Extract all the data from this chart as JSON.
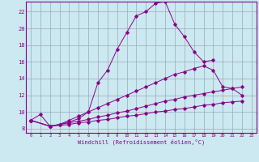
{
  "xlabel": "Windchill (Refroidissement éolien,°C)",
  "bg_color": "#cce8f0",
  "line_color": "#880088",
  "grid_color": "#99aabb",
  "xlim": [
    -0.5,
    23.5
  ],
  "ylim": [
    7.5,
    23.2
  ],
  "xticks": [
    0,
    1,
    2,
    3,
    4,
    5,
    6,
    7,
    8,
    9,
    10,
    11,
    12,
    13,
    14,
    15,
    16,
    17,
    18,
    19,
    20,
    21,
    22,
    23
  ],
  "yticks": [
    8,
    10,
    12,
    14,
    16,
    18,
    20,
    22
  ],
  "series_x": [
    [
      0,
      1,
      2,
      3,
      4,
      5,
      6,
      7,
      8,
      9,
      10,
      11,
      12,
      13,
      14,
      15,
      16,
      17,
      18,
      19
    ],
    [
      0,
      2,
      3,
      4,
      5,
      6,
      7,
      8,
      9,
      10,
      11,
      12,
      13,
      14,
      15,
      16,
      17,
      18,
      19,
      20,
      21,
      22
    ],
    [
      0,
      2,
      4,
      5,
      6,
      7,
      8,
      9,
      10,
      11,
      12,
      13,
      14,
      15,
      16,
      17,
      18,
      19,
      20,
      21,
      22
    ],
    [
      0,
      2,
      4,
      5,
      6,
      7,
      8,
      9,
      10,
      11,
      12,
      13,
      14,
      15,
      16,
      17,
      18,
      19,
      20,
      21,
      22
    ]
  ],
  "series_y": [
    [
      9.0,
      9.7,
      8.3,
      8.5,
      8.8,
      9.2,
      10.0,
      13.5,
      15.0,
      17.5,
      19.5,
      21.5,
      22.0,
      23.0,
      23.2,
      20.5,
      19.0,
      17.2,
      16.0,
      16.2
    ],
    [
      9.0,
      8.3,
      8.5,
      9.0,
      9.5,
      10.0,
      10.5,
      11.0,
      11.5,
      12.0,
      12.5,
      13.0,
      13.5,
      14.0,
      14.5,
      14.8,
      15.2,
      15.5,
      15.0,
      13.0,
      12.8,
      13.0
    ],
    [
      9.0,
      8.3,
      8.7,
      8.9,
      9.1,
      9.4,
      9.6,
      9.9,
      10.1,
      10.4,
      10.7,
      11.0,
      11.3,
      11.5,
      11.8,
      12.0,
      12.2,
      12.4,
      12.6,
      12.8,
      12.0
    ],
    [
      9.0,
      8.3,
      8.5,
      8.7,
      8.8,
      9.0,
      9.1,
      9.3,
      9.5,
      9.6,
      9.8,
      10.0,
      10.1,
      10.3,
      10.4,
      10.6,
      10.8,
      10.9,
      11.1,
      11.2,
      11.3
    ]
  ]
}
